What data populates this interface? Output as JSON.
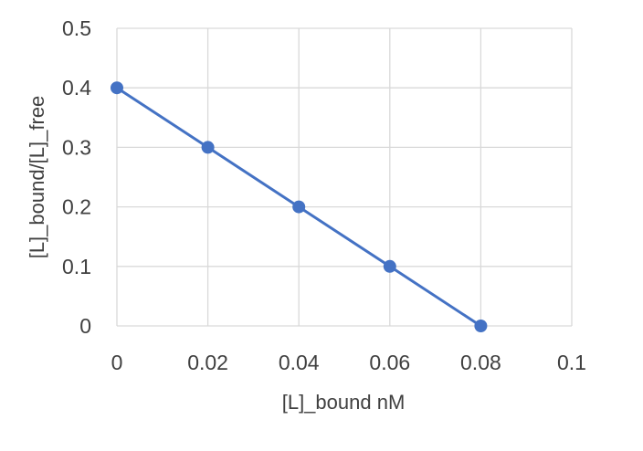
{
  "chart_data": {
    "type": "scatter",
    "title": "",
    "xlabel": "[L]_bound nM",
    "ylabel": "[L]_bound/[L]_free",
    "xlim": [
      0,
      0.1
    ],
    "ylim": [
      0,
      0.5
    ],
    "x_ticks": [
      "0",
      "0.02",
      "0.04",
      "0.06",
      "0.08",
      "0.1"
    ],
    "y_ticks": [
      "0",
      "0.1",
      "0.2",
      "0.3",
      "0.4",
      "0.5"
    ],
    "grid": true,
    "series": [
      {
        "x": [
          0,
          0.02,
          0.04,
          0.06,
          0.08
        ],
        "y": [
          0.4,
          0.3,
          0.2,
          0.1,
          0
        ],
        "color": "#4472c4",
        "connected": true,
        "marker": "circle"
      }
    ]
  }
}
